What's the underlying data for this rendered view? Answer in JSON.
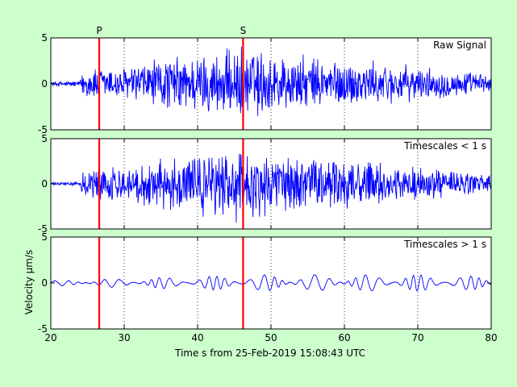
{
  "chart_data": {
    "type": "line",
    "xlabel": "Time s from 25-Feb-2019 15:08:43 UTC",
    "ylabel": "Velocity μm/s",
    "xlim": [
      20,
      80
    ],
    "xticks": [
      20,
      30,
      40,
      50,
      60,
      70,
      80
    ],
    "grid": "dotted vertical lines at x ticks",
    "line_color": "#0000ff",
    "marker_color": "#ff0000",
    "background": "#ccffcc",
    "markers": [
      {
        "label": "P",
        "x": 26.6
      },
      {
        "label": "S",
        "x": 46.2
      }
    ],
    "panels": [
      {
        "label": "Raw Signal",
        "ylim": [
          -5,
          5
        ],
        "yticks": [
          "5",
          "0",
          "-5"
        ],
        "envelope": [
          [
            20,
            0.3
          ],
          [
            24,
            0.4
          ],
          [
            24.2,
            1.5
          ],
          [
            26,
            2.2
          ],
          [
            30,
            2
          ],
          [
            34,
            3
          ],
          [
            40,
            3.6
          ],
          [
            44,
            4
          ],
          [
            46,
            4.6
          ],
          [
            48,
            4.2
          ],
          [
            52,
            3.5
          ],
          [
            58,
            3
          ],
          [
            64,
            2.6
          ],
          [
            70,
            2
          ],
          [
            76,
            1.5
          ],
          [
            80,
            1.2
          ]
        ]
      },
      {
        "label": "Timescales < 1 s",
        "ylim": [
          -5,
          5
        ],
        "yticks": [
          "5",
          "0",
          "-5"
        ],
        "envelope": [
          [
            20,
            0.2
          ],
          [
            24,
            0.2
          ],
          [
            24.2,
            1.5
          ],
          [
            26,
            2.2
          ],
          [
            30,
            2
          ],
          [
            34,
            3
          ],
          [
            40,
            3.6
          ],
          [
            44,
            4
          ],
          [
            46,
            4.6
          ],
          [
            48,
            4.2
          ],
          [
            52,
            3.5
          ],
          [
            58,
            3
          ],
          [
            64,
            2.6
          ],
          [
            70,
            2
          ],
          [
            76,
            1.6
          ],
          [
            80,
            1.3
          ]
        ]
      },
      {
        "label": "Timescales > 1 s",
        "ylim": [
          -5,
          5
        ],
        "yticks": [
          "5",
          "0",
          "-5"
        ],
        "envelope": [
          [
            20,
            0.25
          ],
          [
            30,
            0.5
          ],
          [
            40,
            0.7
          ],
          [
            50,
            0.9
          ],
          [
            60,
            0.9
          ],
          [
            70,
            0.9
          ],
          [
            80,
            0.7
          ]
        ]
      }
    ]
  }
}
